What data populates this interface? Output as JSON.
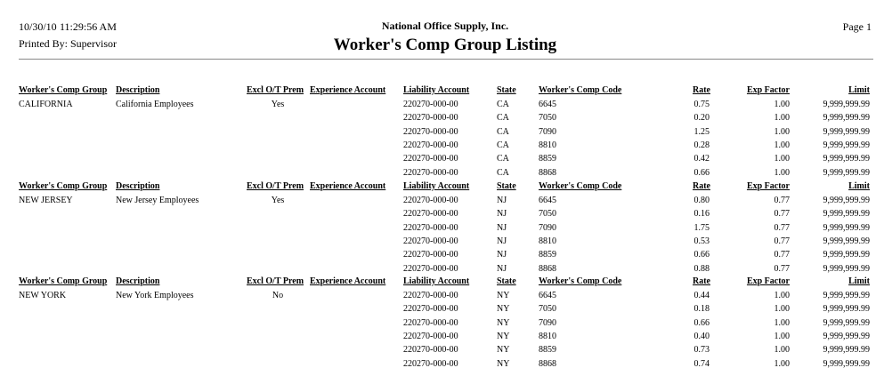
{
  "header": {
    "date": "10/30/10",
    "time": "11:29:56 AM",
    "printed_by": "Printed By: Supervisor",
    "company": "National Office Supply, Inc.",
    "title": "Worker's Comp Group Listing",
    "page": "Page 1"
  },
  "columns": {
    "group": "Worker's Comp Group",
    "description": "Description",
    "excl": "Excl O/T Prem",
    "experience": "Experience Account",
    "liability": "Liability Account",
    "state": "State",
    "code": "Worker's Comp Code",
    "rate": "Rate",
    "expfactor": "Exp Factor",
    "limit": "Limit"
  },
  "groups": [
    {
      "name": "CALIFORNIA",
      "description": "California Employees",
      "excl": "Yes",
      "experience": "",
      "rows": [
        {
          "liability": "220270-000-00",
          "state": "CA",
          "code": "6645",
          "rate": "0.75",
          "expfactor": "1.00",
          "limit": "9,999,999.99"
        },
        {
          "liability": "220270-000-00",
          "state": "CA",
          "code": "7050",
          "rate": "0.20",
          "expfactor": "1.00",
          "limit": "9,999,999.99"
        },
        {
          "liability": "220270-000-00",
          "state": "CA",
          "code": "7090",
          "rate": "1.25",
          "expfactor": "1.00",
          "limit": "9,999,999.99"
        },
        {
          "liability": "220270-000-00",
          "state": "CA",
          "code": "8810",
          "rate": "0.28",
          "expfactor": "1.00",
          "limit": "9,999,999.99"
        },
        {
          "liability": "220270-000-00",
          "state": "CA",
          "code": "8859",
          "rate": "0.42",
          "expfactor": "1.00",
          "limit": "9,999,999.99"
        },
        {
          "liability": "220270-000-00",
          "state": "CA",
          "code": "8868",
          "rate": "0.66",
          "expfactor": "1.00",
          "limit": "9,999,999.99"
        }
      ]
    },
    {
      "name": "NEW JERSEY",
      "description": "New Jersey Employees",
      "excl": "Yes",
      "experience": "",
      "rows": [
        {
          "liability": "220270-000-00",
          "state": "NJ",
          "code": "6645",
          "rate": "0.80",
          "expfactor": "0.77",
          "limit": "9,999,999.99"
        },
        {
          "liability": "220270-000-00",
          "state": "NJ",
          "code": "7050",
          "rate": "0.16",
          "expfactor": "0.77",
          "limit": "9,999,999.99"
        },
        {
          "liability": "220270-000-00",
          "state": "NJ",
          "code": "7090",
          "rate": "1.75",
          "expfactor": "0.77",
          "limit": "9,999,999.99"
        },
        {
          "liability": "220270-000-00",
          "state": "NJ",
          "code": "8810",
          "rate": "0.53",
          "expfactor": "0.77",
          "limit": "9,999,999.99"
        },
        {
          "liability": "220270-000-00",
          "state": "NJ",
          "code": "8859",
          "rate": "0.66",
          "expfactor": "0.77",
          "limit": "9,999,999.99"
        },
        {
          "liability": "220270-000-00",
          "state": "NJ",
          "code": "8868",
          "rate": "0.88",
          "expfactor": "0.77",
          "limit": "9,999,999.99"
        }
      ]
    },
    {
      "name": "NEW YORK",
      "description": "New York Employees",
      "excl": "No",
      "experience": "",
      "rows": [
        {
          "liability": "220270-000-00",
          "state": "NY",
          "code": "6645",
          "rate": "0.44",
          "expfactor": "1.00",
          "limit": "9,999,999.99"
        },
        {
          "liability": "220270-000-00",
          "state": "NY",
          "code": "7050",
          "rate": "0.18",
          "expfactor": "1.00",
          "limit": "9,999,999.99"
        },
        {
          "liability": "220270-000-00",
          "state": "NY",
          "code": "7090",
          "rate": "0.66",
          "expfactor": "1.00",
          "limit": "9,999,999.99"
        },
        {
          "liability": "220270-000-00",
          "state": "NY",
          "code": "8810",
          "rate": "0.40",
          "expfactor": "1.00",
          "limit": "9,999,999.99"
        },
        {
          "liability": "220270-000-00",
          "state": "NY",
          "code": "8859",
          "rate": "0.73",
          "expfactor": "1.00",
          "limit": "9,999,999.99"
        },
        {
          "liability": "220270-000-00",
          "state": "NY",
          "code": "8868",
          "rate": "0.74",
          "expfactor": "1.00",
          "limit": "9,999,999.99"
        }
      ]
    }
  ]
}
